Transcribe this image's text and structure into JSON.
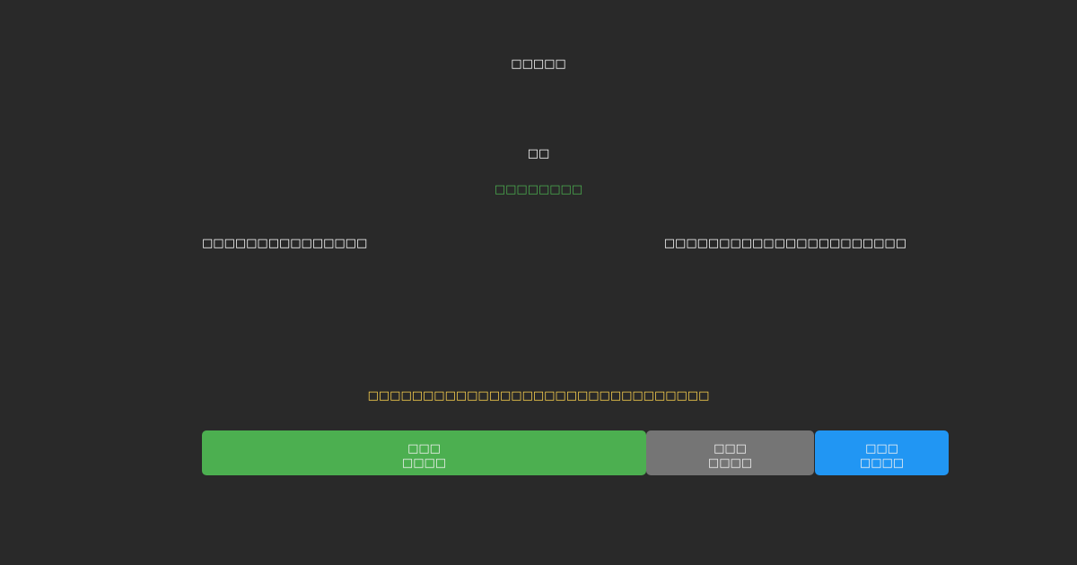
{
  "header": {
    "title": "□□□□□"
  },
  "status": {
    "label": "□□",
    "detail": "□□□□□□□□"
  },
  "info": {
    "left": "□□□□□□□□□□□□□□□",
    "right": "□□□□□□□□□□□□□□□□□□□□□□"
  },
  "notice": "□□□□□□□□□□□□□□□□□□□□□□□□□□□□□□□",
  "buttons": [
    {
      "label": "□□□",
      "sublabel": "□□□□"
    },
    {
      "label": "□□□",
      "sublabel": "□□□□"
    },
    {
      "label": "□□□",
      "sublabel": "□□□□"
    }
  ]
}
